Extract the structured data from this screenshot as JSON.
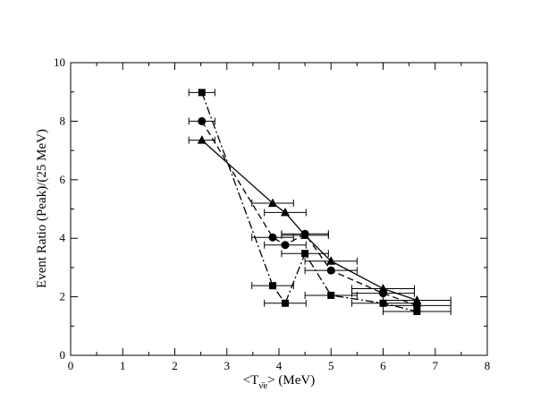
{
  "chart_data": {
    "type": "scatter",
    "title": "",
    "xlabel_parts": {
      "prefix": "<T",
      "subscript": "ν̄e",
      "suffix": "> (MeV)"
    },
    "ylabel": "Event Ratio (Peak)/(25 MeV)",
    "xlim": [
      0,
      8
    ],
    "ylim": [
      0,
      10
    ],
    "xticks": [
      0,
      1,
      2,
      3,
      4,
      5,
      6,
      7,
      8
    ],
    "yticks": [
      0,
      2,
      4,
      6,
      8,
      10
    ],
    "grid": false,
    "legend": "none",
    "color": "#000000",
    "series": [
      {
        "marker": "triangle",
        "line": "solid",
        "x": [
          2.52,
          3.88,
          4.12,
          4.5,
          5.0,
          6.0,
          6.65
        ],
        "y": [
          7.35,
          5.2,
          4.88,
          4.1,
          3.22,
          2.28,
          1.88
        ],
        "xerr": [
          0.25,
          0.4,
          0.4,
          0.45,
          0.5,
          0.6,
          0.65
        ]
      },
      {
        "marker": "circle",
        "line": "dashed",
        "x": [
          2.52,
          3.88,
          4.12,
          4.5,
          5.0,
          6.0,
          6.65
        ],
        "y": [
          8.0,
          4.03,
          3.77,
          4.15,
          2.9,
          2.12,
          1.7
        ],
        "xerr": [
          0.25,
          0.4,
          0.4,
          0.45,
          0.5,
          0.6,
          0.65
        ]
      },
      {
        "marker": "square",
        "line": "dashdot",
        "x": [
          2.52,
          3.88,
          4.12,
          4.5,
          5.0,
          6.0,
          6.65
        ],
        "y": [
          8.98,
          2.38,
          1.78,
          3.48,
          2.05,
          1.78,
          1.5
        ],
        "xerr": [
          0.25,
          0.4,
          0.4,
          0.45,
          0.5,
          0.6,
          0.65
        ]
      }
    ]
  }
}
